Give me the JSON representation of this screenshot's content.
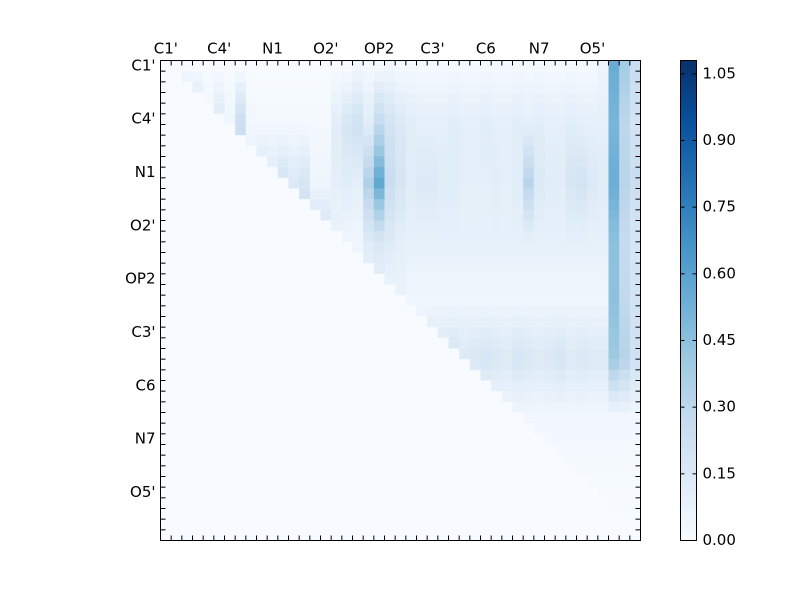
{
  "chart_data": {
    "type": "heatmap",
    "title": "",
    "xlabel": "",
    "ylabel": "",
    "colormap": "Blues",
    "color_range": [
      0.0,
      1.08
    ],
    "x_tick_labels": [
      "C1'",
      "C4'",
      "N1",
      "O2'",
      "OP2",
      "C3'",
      "C6",
      "N7",
      "O5'"
    ],
    "y_tick_labels": [
      "C1'",
      "C4'",
      "N1",
      "O2'",
      "OP2",
      "C3'",
      "C6",
      "N7",
      "O5'"
    ],
    "labeled_tick_indices": [
      0,
      5,
      10,
      15,
      20,
      25,
      30,
      35,
      40
    ],
    "colorbar": {
      "label": "",
      "ticks": [
        0.0,
        0.15,
        0.3,
        0.45,
        0.6,
        0.75,
        0.9,
        1.05
      ],
      "tick_labels": [
        "0.00",
        "0.15",
        "0.30",
        "0.45",
        "0.60",
        "0.75",
        "0.90",
        "1.05"
      ]
    },
    "grid_size": 45,
    "structure": "upper-triangular matrix; lower triangle is ~0",
    "row_profiles": [
      {
        "row": 0,
        "values": [
          0,
          0,
          0,
          0,
          0,
          0,
          0,
          0,
          0,
          0,
          0,
          0,
          0,
          0,
          0,
          0,
          0,
          0,
          0.03,
          0.02,
          0.02,
          0.03,
          0.02,
          0.02,
          0.02,
          0.02,
          0.02,
          0.02,
          0.02,
          0.02,
          0.02,
          0.02,
          0.02,
          0.02,
          0.02,
          0.02,
          0.02,
          0.02,
          0.02,
          0.02,
          0.02,
          0.05,
          0.55,
          0.38,
          0.25
        ]
      },
      {
        "row": 1,
        "values": [
          0,
          0,
          0.3,
          0.22,
          0.05,
          0.15,
          0.05,
          0.25,
          0.03,
          0.02,
          0.02,
          0.02,
          0.02,
          0.02,
          0.02,
          0.02,
          0.12,
          0.18,
          0.22,
          0.12,
          0.28,
          0.2,
          0.15,
          0.12,
          0.1,
          0.1,
          0.1,
          0.12,
          0.1,
          0.1,
          0.12,
          0.1,
          0.1,
          0.12,
          0.1,
          0.12,
          0.1,
          0.1,
          0.12,
          0.1,
          0.1,
          0.1,
          0.5,
          0.3,
          0.2
        ]
      },
      {
        "row": 2,
        "values": [
          0,
          0,
          0,
          0,
          0.12,
          0.05,
          0.05,
          0.05,
          0.12,
          0.18,
          0.15,
          0.2,
          0.15,
          0.18,
          0.05,
          0.05,
          0.1,
          0.12,
          0.1,
          0.35,
          0.58,
          0.25,
          0.18,
          0.12,
          0.15,
          0.15,
          0.12,
          0.12,
          0.1,
          0.1,
          0.1,
          0.12,
          0.1,
          0.12,
          0.32,
          0.15,
          0.12,
          0.12,
          0.18,
          0.2,
          0.15,
          0.12,
          0.55,
          0.32,
          0.25
        ]
      },
      {
        "row": 3,
        "values": [
          0,
          0,
          0,
          0,
          0,
          0,
          0.22,
          0.05,
          0.25,
          0.25,
          0.22,
          0.25,
          0.22,
          0.28,
          0.25,
          0.22,
          0.08,
          0.05,
          0.05,
          0.15,
          0.18,
          0.15,
          0.12,
          0.1,
          0.1,
          0.1,
          0.1,
          0.1,
          0.1,
          0.1,
          0.1,
          0.1,
          0.1,
          0.1,
          0.1,
          0.1,
          0.1,
          0.1,
          0.1,
          0.1,
          0.1,
          0.1,
          0.5,
          0.3,
          0.2
        ]
      },
      {
        "row": 4,
        "values": [
          0,
          0,
          0,
          0,
          0,
          0,
          0,
          0,
          0.05,
          0.02,
          0.02,
          0.02,
          0.02,
          0.02,
          0.05,
          0.02,
          0.02,
          0.05,
          0.08,
          0.05,
          0.08,
          0.05,
          0.08,
          0.05,
          0.05,
          0.05,
          0.05,
          0.05,
          0.05,
          0.05,
          0.05,
          0.05,
          0.05,
          0.05,
          0.05,
          0.05,
          0.05,
          0.05,
          0.05,
          0.05,
          0.05,
          0.05,
          0.55,
          0.35,
          0.25
        ]
      },
      {
        "row": 5,
        "values": [
          0,
          0,
          0,
          0,
          0,
          0,
          0,
          0,
          0,
          0,
          0.02,
          0.02,
          0.02,
          0.02,
          0.02,
          0.02,
          0.1,
          0.08,
          0.35,
          0.25,
          0.18,
          0.22,
          0.22,
          0.22,
          0.18,
          0.2,
          0.22,
          0.25,
          0.2,
          0.22,
          0.25,
          0.22,
          0.2,
          0.25,
          0.22,
          0.2,
          0.22,
          0.25,
          0.2,
          0.22,
          0.2,
          0.2,
          0.55,
          0.45,
          0.3
        ]
      },
      {
        "row": 6,
        "values": [
          0,
          0,
          0,
          0,
          0,
          0,
          0,
          0,
          0,
          0,
          0,
          0,
          0.02,
          0.02,
          0.03,
          0.03,
          0.03,
          0.05,
          0.08,
          0.1,
          0.15,
          0.15,
          0.1,
          0.1,
          0.05,
          0.05,
          0.05,
          0.05,
          0.05,
          0.05,
          0.05,
          0.05,
          0.05,
          0.05,
          0.05,
          0.05,
          0.05,
          0.05,
          0.05,
          0.05,
          0.05,
          0.05,
          0.05,
          0.05,
          0.05
        ]
      },
      {
        "row": 7,
        "values": [
          0,
          0,
          0,
          0,
          0,
          0,
          0,
          0,
          0,
          0,
          0,
          0,
          0,
          0.02,
          0.02,
          0.02,
          0.02,
          0.02,
          0.02,
          0.03,
          0.03,
          0.02,
          0.02,
          0.02,
          0.03,
          0.02,
          0.02,
          0.02,
          0.02,
          0.03,
          0.02,
          0.02,
          0.02,
          0.02,
          0.02,
          0.02,
          0.02,
          0.02,
          0.02,
          0.02,
          0.02,
          0.02,
          0.02,
          0.02,
          0.02
        ]
      },
      {
        "row": 8,
        "values": [
          0,
          0,
          0,
          0,
          0,
          0,
          0,
          0,
          0,
          0,
          0,
          0,
          0,
          0,
          0,
          0,
          0,
          0,
          0,
          0,
          0,
          0,
          0,
          0,
          0,
          0,
          0,
          0,
          0,
          0,
          0,
          0,
          0,
          0,
          0,
          0,
          0,
          0,
          0,
          0,
          0,
          0,
          0,
          0,
          0
        ]
      }
    ]
  }
}
